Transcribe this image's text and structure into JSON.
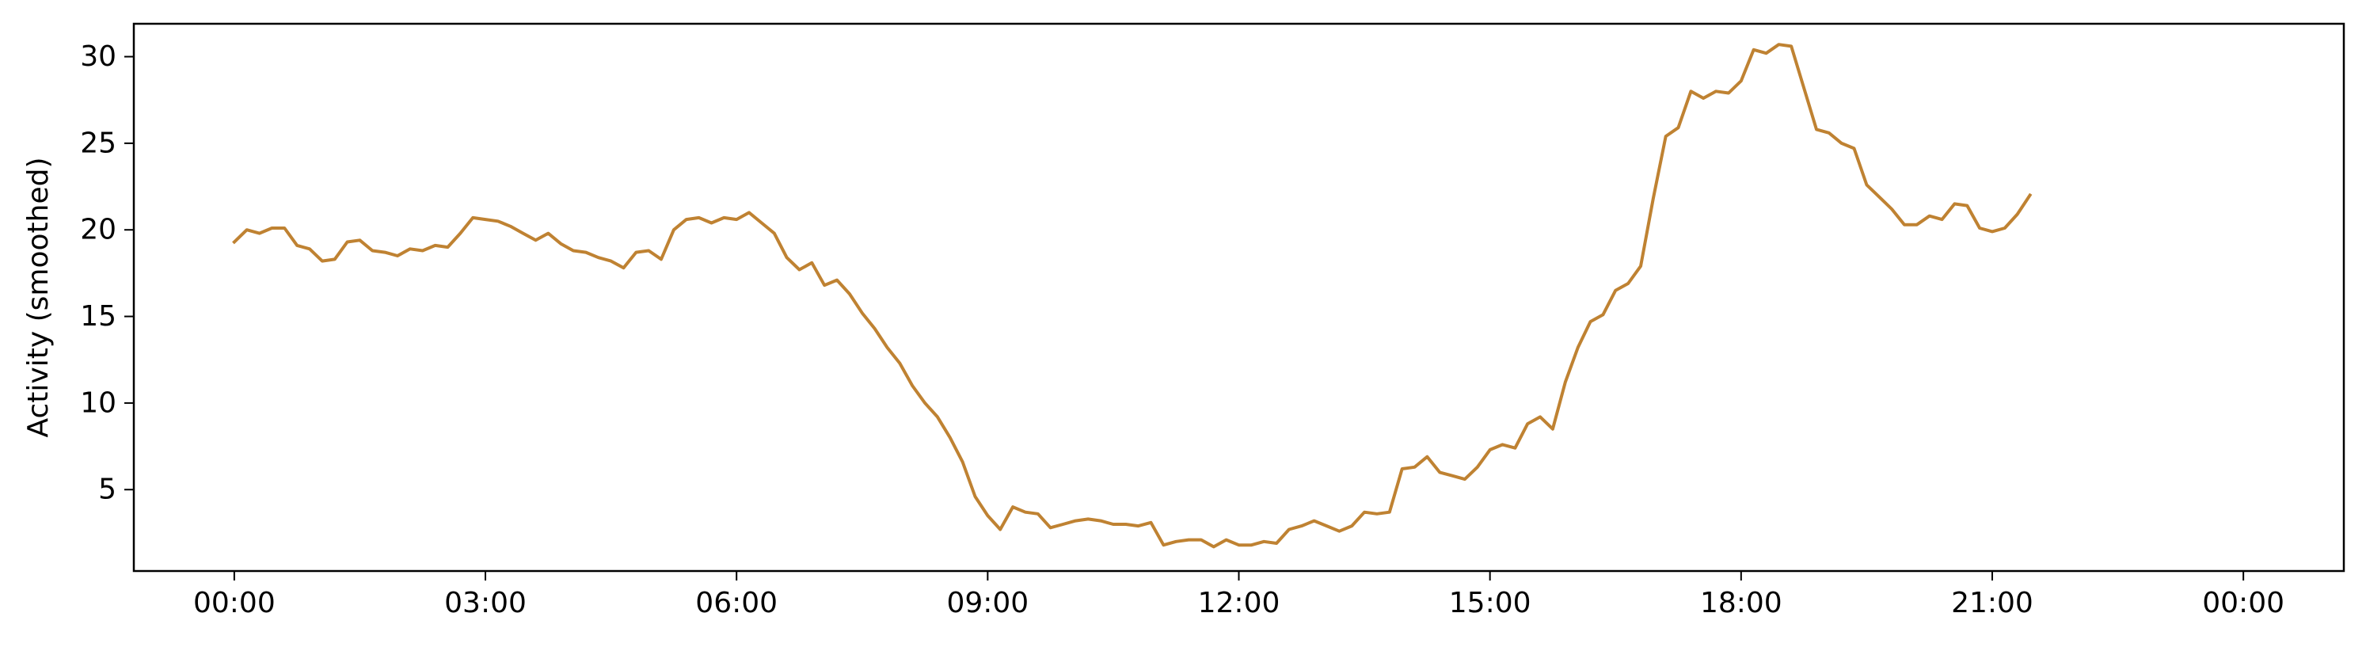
{
  "chart_data": {
    "type": "line",
    "title": "",
    "xlabel": "",
    "ylabel": "Activity (smoothed)",
    "xlim": [
      -1.2,
      25.2
    ],
    "ylim": [
      0.3,
      31.9
    ],
    "grid": false,
    "line_color": "#bf8232",
    "x_ticks": [
      {
        "value": 0,
        "label": "00:00"
      },
      {
        "value": 3,
        "label": "03:00"
      },
      {
        "value": 6,
        "label": "06:00"
      },
      {
        "value": 9,
        "label": "09:00"
      },
      {
        "value": 12,
        "label": "12:00"
      },
      {
        "value": 15,
        "label": "15:00"
      },
      {
        "value": 18,
        "label": "18:00"
      },
      {
        "value": 21,
        "label": "21:00"
      },
      {
        "value": 24,
        "label": "00:00"
      }
    ],
    "y_ticks": [
      {
        "value": 5,
        "label": "5"
      },
      {
        "value": 10,
        "label": "10"
      },
      {
        "value": 15,
        "label": "15"
      },
      {
        "value": 20,
        "label": "20"
      },
      {
        "value": 25,
        "label": "25"
      },
      {
        "value": 30,
        "label": "30"
      }
    ],
    "series": [
      {
        "x_start": 0,
        "x_step": 0.15,
        "values": [
          19.3,
          20.0,
          19.8,
          20.1,
          20.1,
          19.1,
          18.9,
          18.2,
          18.3,
          19.3,
          19.4,
          18.8,
          18.7,
          18.5,
          18.9,
          18.8,
          19.1,
          19.0,
          19.8,
          20.7,
          20.6,
          20.5,
          20.2,
          19.8,
          19.4,
          19.8,
          19.2,
          18.8,
          18.7,
          18.4,
          18.2,
          17.8,
          18.7,
          18.8,
          18.3,
          20.0,
          20.6,
          20.7,
          20.4,
          20.7,
          20.6,
          21.0,
          20.4,
          19.8,
          18.4,
          17.7,
          18.1,
          16.8,
          17.1,
          16.3,
          15.2,
          14.3,
          13.2,
          12.3,
          11.0,
          10.0,
          9.2,
          8.0,
          6.6,
          4.6,
          3.5,
          2.7,
          4.0,
          3.7,
          3.6,
          2.8,
          3.0,
          3.2,
          3.3,
          3.2,
          3.0,
          3.0,
          2.9,
          3.1,
          1.8,
          2.0,
          2.1,
          2.1,
          1.7,
          2.1,
          1.8,
          1.8,
          2.0,
          1.9,
          2.7,
          2.9,
          3.2,
          2.9,
          2.6,
          2.9,
          3.7,
          3.6,
          3.7,
          6.2,
          6.3,
          6.9,
          6.0,
          5.8,
          5.6,
          6.3,
          7.3,
          7.6,
          7.4,
          8.8,
          9.2,
          8.5,
          11.2,
          13.2,
          14.7,
          15.1,
          16.5,
          16.9,
          17.9,
          21.8,
          25.4,
          25.9,
          28.0,
          27.6,
          28.0,
          27.9,
          28.6,
          30.4,
          30.2,
          30.7,
          30.6,
          28.2,
          25.8,
          25.6,
          25.0,
          24.7,
          22.6,
          21.9,
          21.2,
          20.3,
          20.3,
          20.8,
          20.6,
          21.5,
          21.4,
          20.1,
          19.9,
          20.1,
          20.9,
          22.0
        ]
      }
    ]
  }
}
